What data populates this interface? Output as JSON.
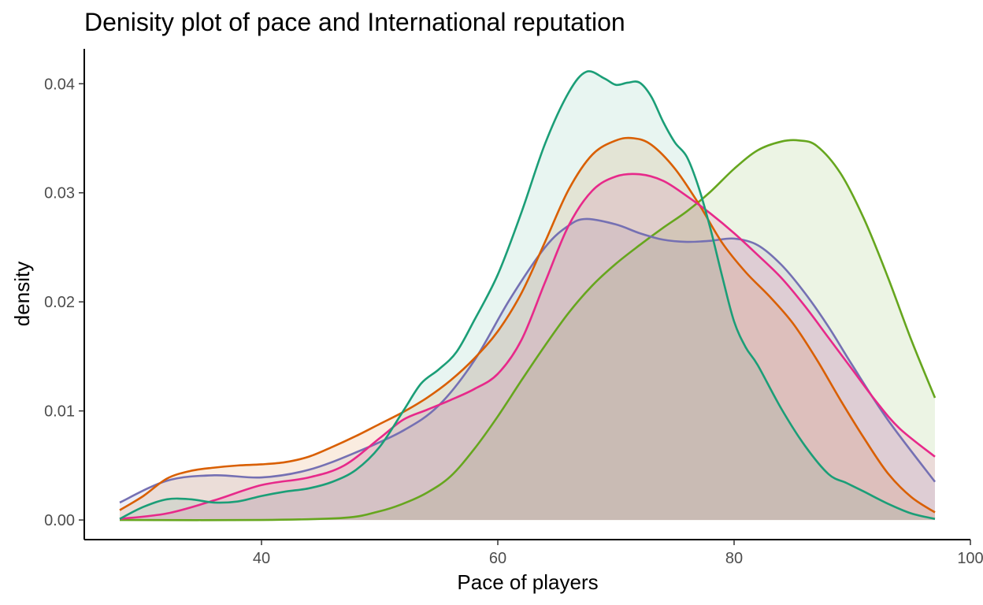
{
  "chart_data": {
    "type": "area",
    "title": "Denisity plot of pace and International reputation",
    "xlabel": "Pace of players",
    "ylabel": "density",
    "xlim": [
      25,
      100
    ],
    "ylim": [
      -0.0018,
      0.0432
    ],
    "xticks": [
      40,
      60,
      80,
      100
    ],
    "xtick_labels": [
      "40",
      "60",
      "80",
      "100"
    ],
    "yticks": [
      0,
      0.01,
      0.02,
      0.03,
      0.04
    ],
    "ytick_labels": [
      "0.00",
      "0.01",
      "0.02",
      "0.03",
      "0.04"
    ],
    "grid": false,
    "legend": "none",
    "series": [
      {
        "color": "#66a61e",
        "fill_opacity": 0.12,
        "x": [
          28,
          40,
          47,
          50,
          52,
          54,
          56,
          58,
          60,
          62,
          64,
          66,
          68,
          70,
          72,
          74,
          76,
          78,
          80,
          82,
          84,
          85.5,
          87,
          89,
          91,
          93,
          95,
          97
        ],
        "y": [
          0.0,
          0.0,
          0.0002,
          0.0008,
          0.0015,
          0.0025,
          0.004,
          0.0065,
          0.0095,
          0.0128,
          0.016,
          0.019,
          0.0215,
          0.0235,
          0.0252,
          0.0268,
          0.0283,
          0.0301,
          0.0322,
          0.0339,
          0.0347,
          0.0348,
          0.0343,
          0.0318,
          0.0276,
          0.0223,
          0.0165,
          0.0112
        ]
      },
      {
        "color": "#7570b3",
        "fill_opacity": 0.12,
        "x": [
          28,
          32,
          36,
          40,
          44,
          48,
          52,
          55,
          58,
          61,
          64,
          66,
          67.5,
          70,
          72,
          74,
          76,
          78,
          80,
          82,
          84,
          86,
          88,
          90,
          93,
          97
        ],
        "y": [
          0.0016,
          0.0036,
          0.0041,
          0.0039,
          0.0046,
          0.0062,
          0.0082,
          0.0105,
          0.0146,
          0.0202,
          0.025,
          0.027,
          0.0276,
          0.0271,
          0.0263,
          0.0257,
          0.0255,
          0.0256,
          0.0258,
          0.0252,
          0.0234,
          0.0208,
          0.0177,
          0.0142,
          0.0092,
          0.0035
        ]
      },
      {
        "color": "#d95f02",
        "fill_opacity": 0.12,
        "x": [
          28,
          30,
          32,
          34,
          36,
          38,
          40,
          42,
          44,
          46,
          48,
          50,
          52,
          54,
          56,
          58,
          60,
          62,
          64,
          66,
          68,
          70,
          71.5,
          73,
          75,
          77,
          79,
          81,
          83,
          85,
          87,
          89,
          91,
          93,
          95,
          97
        ],
        "y": [
          0.0009,
          0.0022,
          0.0038,
          0.0045,
          0.0048,
          0.005,
          0.0051,
          0.0053,
          0.0058,
          0.0067,
          0.0077,
          0.0088,
          0.0099,
          0.0112,
          0.0128,
          0.0148,
          0.0173,
          0.0208,
          0.0255,
          0.0303,
          0.0335,
          0.0348,
          0.035,
          0.0344,
          0.0322,
          0.029,
          0.0254,
          0.0227,
          0.0205,
          0.018,
          0.0147,
          0.011,
          0.0075,
          0.0043,
          0.0021,
          0.0007
        ]
      },
      {
        "color": "#e7298a",
        "fill_opacity": 0.12,
        "x": [
          28,
          32,
          36,
          40,
          44,
          47,
          50,
          52,
          54,
          56,
          58,
          60,
          62,
          64,
          66,
          68,
          70,
          72,
          74,
          76,
          78,
          80,
          82,
          84,
          86,
          88,
          90,
          92,
          94,
          97
        ],
        "y": [
          0.0001,
          0.0006,
          0.0018,
          0.0032,
          0.0039,
          0.005,
          0.0075,
          0.0092,
          0.0101,
          0.011,
          0.012,
          0.0134,
          0.0165,
          0.0218,
          0.027,
          0.0302,
          0.0315,
          0.0317,
          0.0311,
          0.0297,
          0.0281,
          0.0263,
          0.0243,
          0.0222,
          0.0196,
          0.0167,
          0.0138,
          0.0109,
          0.0084,
          0.0058
        ]
      },
      {
        "color": "#1b9e77",
        "fill_opacity": 0.1,
        "x": [
          28,
          30,
          32,
          34,
          36,
          38,
          40,
          42,
          44,
          46,
          48,
          50,
          52,
          53.5,
          55,
          56.5,
          58,
          60,
          62,
          64,
          66,
          67.5,
          69,
          70,
          71,
          72,
          73,
          74,
          75,
          76,
          77,
          78,
          79,
          80,
          81,
          82,
          84,
          86,
          88,
          89.5,
          91,
          93,
          95,
          97
        ],
        "y": [
          0.0001,
          0.0012,
          0.0019,
          0.0019,
          0.0016,
          0.0017,
          0.0022,
          0.0026,
          0.0029,
          0.0035,
          0.0046,
          0.0067,
          0.01,
          0.0125,
          0.0138,
          0.0154,
          0.0183,
          0.0225,
          0.0282,
          0.0345,
          0.0392,
          0.0411,
          0.0405,
          0.0399,
          0.0401,
          0.0401,
          0.0388,
          0.0365,
          0.0346,
          0.0333,
          0.0305,
          0.0267,
          0.0223,
          0.0182,
          0.0158,
          0.0142,
          0.0102,
          0.0068,
          0.0042,
          0.0034,
          0.0026,
          0.0015,
          0.0006,
          0.0001
        ]
      }
    ]
  }
}
